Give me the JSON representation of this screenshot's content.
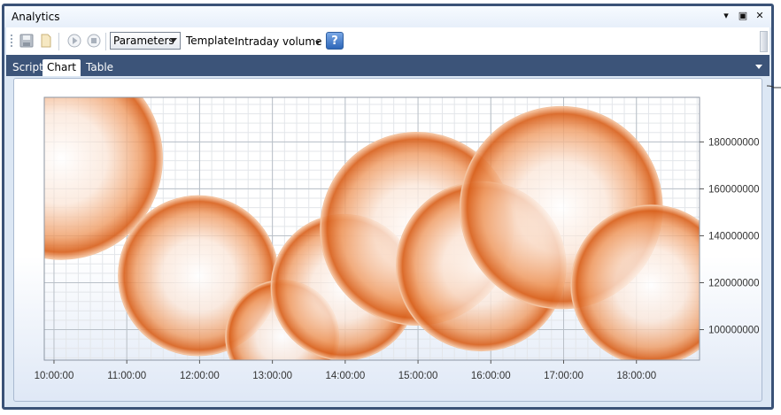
{
  "window": {
    "title": "Analytics"
  },
  "toolbar": {
    "parameters_label": "Parameters",
    "template_label": "Template:",
    "template_value": "Intraday volume",
    "help_label": "?"
  },
  "tabs": [
    {
      "label": "Script",
      "active": false
    },
    {
      "label": "Chart",
      "active": true
    },
    {
      "label": "Table",
      "active": false
    }
  ],
  "colors": {
    "bubble": "#e0661e",
    "frame": "#3c5479"
  },
  "chart_data": {
    "type": "scatter",
    "subtype": "bubble",
    "title": "",
    "xlabel": "",
    "ylabel": "",
    "x_ticks": [
      "10:00:00",
      "11:00:00",
      "12:00:00",
      "13:00:00",
      "14:00:00",
      "15:00:00",
      "16:00:00",
      "17:00:00",
      "18:00:00"
    ],
    "y_ticks": [
      100000000,
      120000000,
      140000000,
      160000000,
      180000000
    ],
    "xlim": [
      "09:52:00",
      "18:52:00"
    ],
    "ylim": [
      87000000,
      199000000
    ],
    "y_axis_side": "right",
    "grid": true,
    "legend": "none",
    "points": [
      {
        "x": "10:06:00",
        "y": 173000000,
        "r": 43000000
      },
      {
        "x": "11:59:00",
        "y": 123000000,
        "r": 34000000
      },
      {
        "x": "13:08:00",
        "y": 97000000,
        "r": 24000000
      },
      {
        "x": "13:59:00",
        "y": 118000000,
        "r": 31000000
      },
      {
        "x": "14:59:00",
        "y": 143000000,
        "r": 41000000
      },
      {
        "x": "15:52:00",
        "y": 127000000,
        "r": 36000000
      },
      {
        "x": "16:58:00",
        "y": 152000000,
        "r": 43000000
      },
      {
        "x": "18:12:00",
        "y": 119000000,
        "r": 34000000
      }
    ]
  }
}
